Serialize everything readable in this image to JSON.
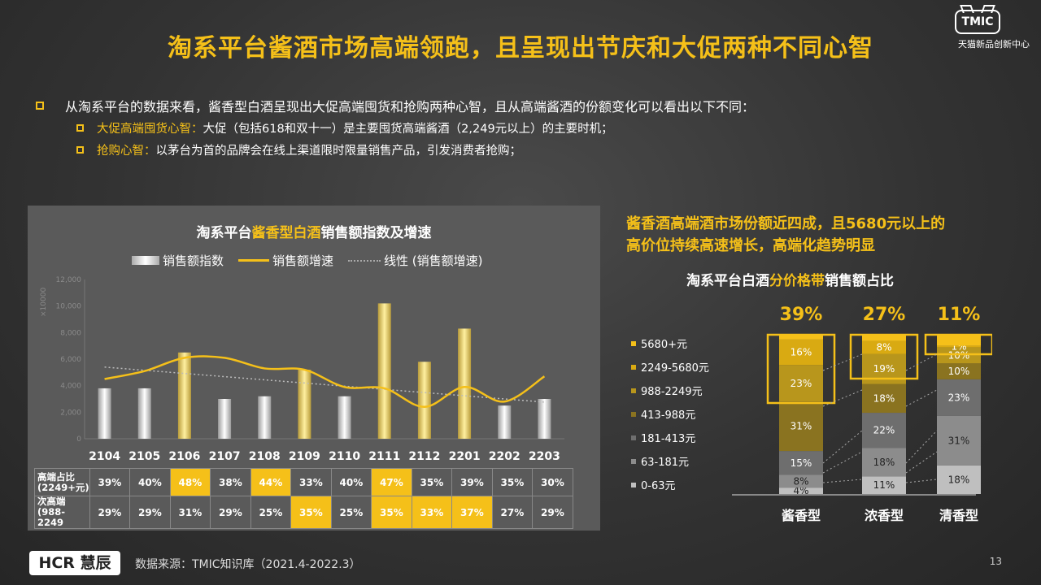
{
  "title": "淘系平台酱酒市场高端领跑，且呈现出节庆和大促两种不同心智",
  "brand": {
    "logo": "TMIC",
    "subtitle": "天猫新品创新中心"
  },
  "bullets": {
    "main": "从淘系平台的数据来看，酱香型白酒呈现出大促高端囤货和抢购两种心智，且从高端酱酒的份额变化可以看出以下不同：",
    "sub1_label": "大促高端囤货心智：",
    "sub1_text": "大促（包括618和双十一）是主要囤货高端酱酒（2,249元以上）的主要时机；",
    "sub2_label": "抢购心智：",
    "sub2_text": "以茅台为首的品牌会在线上渠道限时限量销售产品，引发消费者抢购；"
  },
  "left_chart": {
    "title_pre": "淘系平台",
    "title_hl": "酱香型白酒",
    "title_post": "销售额指数及增速",
    "legend": [
      "销售额指数",
      "销售额增速",
      "线性 (销售额增速)"
    ],
    "y_axis_label": "×10000",
    "y_ticks": [
      "12,000",
      "10,000",
      "8,000",
      "6,000",
      "4,000",
      "2,000",
      "0"
    ]
  },
  "table": {
    "row1_label_a": "高端占比",
    "row1_label_b": "(2249+元)",
    "row2_label_a": "次高端",
    "row2_label_b": "(988-2249",
    "row1": [
      "39%",
      "40%",
      "48%",
      "38%",
      "44%",
      "33%",
      "40%",
      "47%",
      "35%",
      "39%",
      "35%",
      "30%"
    ],
    "row1_highlight": [
      false,
      false,
      true,
      false,
      true,
      false,
      false,
      true,
      false,
      false,
      false,
      false
    ],
    "row2": [
      "29%",
      "29%",
      "31%",
      "29%",
      "25%",
      "35%",
      "25%",
      "35%",
      "33%",
      "37%",
      "27%",
      "29%"
    ],
    "row2_highlight": [
      false,
      false,
      false,
      false,
      false,
      true,
      false,
      true,
      true,
      true,
      false,
      false
    ]
  },
  "right": {
    "title_line1": "酱香酒高端酒市场份额近四成，且5680元以上的",
    "title_line2": "高价位持续高速增长，高端化趋势明显",
    "chart_title_pre": "淘系平台白酒",
    "chart_title_hl": "分价格带",
    "chart_title_post": "销售额占比"
  },
  "chart_data": [
    {
      "type": "bar",
      "categories": [
        "2104",
        "2105",
        "2106",
        "2107",
        "2108",
        "2109",
        "2110",
        "2111",
        "2112",
        "2201",
        "2202",
        "2203"
      ],
      "series": [
        {
          "name": "销售额指数",
          "values": [
            3800,
            3800,
            6500,
            3000,
            3200,
            5200,
            3200,
            10200,
            5800,
            8300,
            2500,
            3000
          ]
        },
        {
          "name": "销售额增速",
          "type": "line",
          "values": [
            4500,
            5100,
            6100,
            6100,
            5300,
            5200,
            3900,
            3800,
            2400,
            3900,
            2800,
            4700
          ]
        },
        {
          "name": "线性 (销售额增速)",
          "type": "line",
          "values": [
            5400,
            5160,
            4920,
            4680,
            4440,
            4200,
            3960,
            3720,
            3480,
            3240,
            3000,
            2760
          ]
        }
      ],
      "ylim": [
        0,
        12000
      ],
      "title": "淘系平台酱香型白酒销售额指数及增速"
    },
    {
      "type": "bar",
      "stacked": true,
      "categories": [
        "酱香型",
        "浓香型",
        "清香型"
      ],
      "top_share": [
        "39%",
        "27%",
        "11%"
      ],
      "segments_order_bottom_to_top": [
        "0-63元",
        "63-181元",
        "181-413元",
        "413-988元",
        "988-2249元",
        "2249-5680元",
        "5680+元"
      ],
      "series": [
        {
          "name": "0-63元",
          "color": "#bfbfbf",
          "values": [
            4,
            11,
            18
          ]
        },
        {
          "name": "63-181元",
          "color": "#8c8c8c",
          "values": [
            8,
            18,
            31
          ]
        },
        {
          "name": "181-413元",
          "color": "#6e6e6e",
          "values": [
            15,
            22,
            23
          ]
        },
        {
          "name": "413-988元",
          "color": "#8a7320",
          "values": [
            31,
            18,
            10
          ]
        },
        {
          "name": "988-2249元",
          "color": "#b8961c",
          "values": [
            23,
            19,
            10
          ]
        },
        {
          "name": "2249-5680元",
          "color": "#d9aa12",
          "values": [
            16,
            8,
            1
          ]
        },
        {
          "name": "5680+元",
          "color": "#f5c019",
          "values": [
            0,
            0,
            0
          ]
        }
      ],
      "labels": {
        "酱香型": [
          "4%",
          "8%",
          "15%",
          "31%",
          "23%",
          "16%"
        ],
        "浓香型": [
          "11%",
          "18%",
          "22%",
          "18%",
          "19%",
          "8%"
        ],
        "清香型": [
          "18%",
          "31%",
          "23%",
          "10%",
          "10%",
          "1%"
        ]
      },
      "title": "淘系平台白酒分价格带销售额占比"
    }
  ],
  "footer": {
    "logo": "HCR 慧辰",
    "source": "数据来源：TMIC知识库（2021.4-2022.3）",
    "page": "13"
  }
}
